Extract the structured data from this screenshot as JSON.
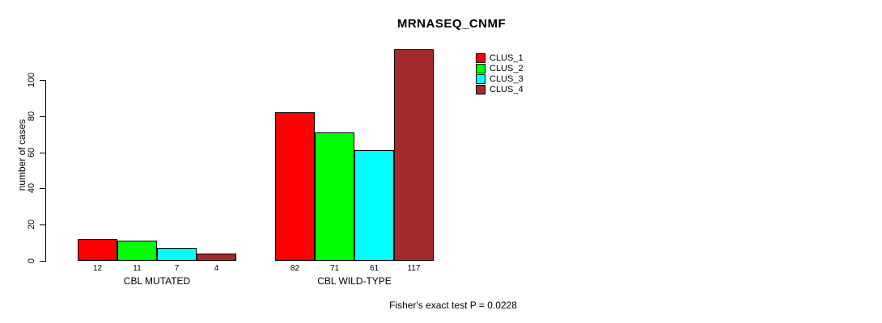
{
  "chart_data": {
    "type": "bar",
    "title": "MRNASEQ_CNMF",
    "ylabel": "number of cases",
    "xlabel": "",
    "categories": [
      "CBL MUTATED",
      "CBL WILD-TYPE"
    ],
    "series": [
      {
        "name": "CLUS_1",
        "color": "#ff0000",
        "values": [
          12,
          82
        ]
      },
      {
        "name": "CLUS_2",
        "color": "#00ff00",
        "values": [
          11,
          71
        ]
      },
      {
        "name": "CLUS_3",
        "color": "#00ffff",
        "values": [
          7,
          61
        ]
      },
      {
        "name": "CLUS_4",
        "color": "#a52a2a",
        "values": [
          4,
          117
        ]
      }
    ],
    "bar_value_labels": [
      [
        "12",
        "11",
        "7",
        "4"
      ],
      [
        "82",
        "71",
        "61",
        "117"
      ]
    ],
    "yticks": [
      0,
      20,
      40,
      60,
      80,
      100
    ],
    "ylim": [
      0,
      100
    ],
    "grid": false,
    "legend_position": "top-right",
    "annotation": "Fisher's exact test P = 0.0228",
    "axis_color": "#000000",
    "background_color": "#ffffff"
  }
}
